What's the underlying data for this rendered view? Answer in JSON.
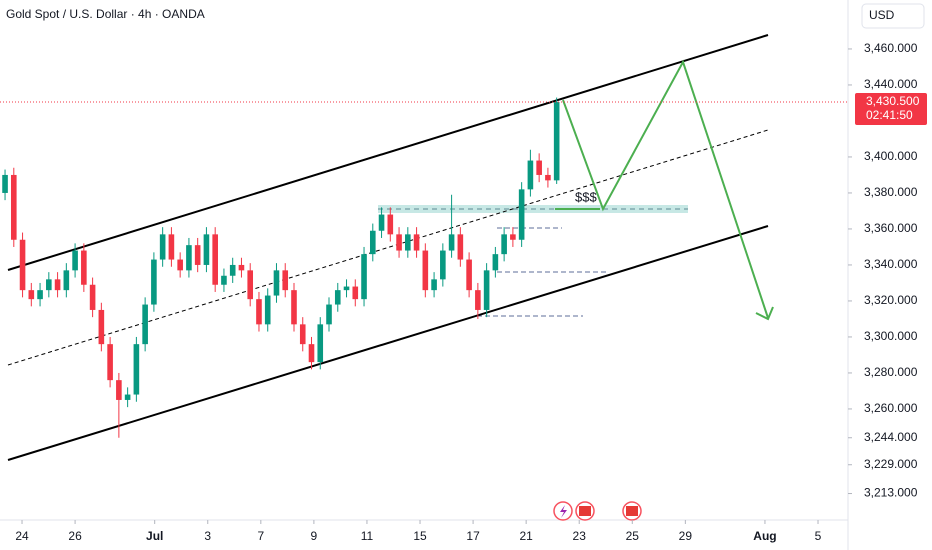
{
  "chart_data": {
    "type": "candlestick",
    "title": "Gold Spot / U.S. Dollar · 4h · OANDA",
    "currency": "USD",
    "price_label": "3,430.500",
    "countdown": "02:41:50",
    "annotation": "$$$",
    "up_color": "#089981",
    "down_color": "#f23645",
    "x": [
      -0.64,
      -0.31,
      0.02,
      0.35,
      0.68,
      1.01,
      1.34,
      1.67,
      2,
      2.33,
      2.66,
      2.99,
      3.32,
      3.65,
      3.98,
      4.31,
      4.64,
      4.97,
      5.3,
      5.63,
      5.96,
      6.29,
      6.62,
      6.95,
      7.28,
      7.61,
      7.94,
      8.27,
      8.6,
      8.93,
      9.26,
      9.59,
      9.92,
      10.25,
      10.58,
      10.91,
      11.24,
      11.57,
      11.9,
      12.23,
      12.56,
      12.89,
      13.22,
      13.55,
      13.88,
      14.21,
      14.54,
      14.87,
      15.2,
      15.53,
      15.86,
      16.19,
      16.52,
      16.85,
      17.18,
      17.51,
      17.84,
      18.17,
      18.5,
      18.83,
      19.16,
      19.49,
      19.82,
      20.15
    ],
    "open": [
      3380,
      3390,
      3354,
      3326,
      3321,
      3326,
      3332,
      3326,
      3337,
      3348,
      3329,
      3315,
      3296,
      3276,
      3265,
      3268,
      3296,
      3318,
      3343,
      3357,
      3343,
      3337,
      3351,
      3340,
      3357,
      3329,
      3334,
      3340,
      3337,
      3321,
      3307,
      3323,
      3337,
      3326,
      3307,
      3296,
      3286,
      3307,
      3318,
      3326,
      3328,
      3321,
      3346,
      3359,
      3368,
      3357,
      3348,
      3357,
      3348,
      3326,
      3332,
      3348,
      3357,
      3343,
      3326,
      3315,
      3337,
      3346,
      3357,
      3354,
      3382,
      3398,
      3390,
      3387
    ],
    "high": [
      3393,
      3394,
      3358,
      3330,
      3330,
      3336,
      3336,
      3341,
      3352,
      3352,
      3333,
      3319,
      3300,
      3280,
      3272,
      3300,
      3322,
      3347,
      3361,
      3361,
      3347,
      3355,
      3355,
      3361,
      3361,
      3338,
      3344,
      3344,
      3341,
      3325,
      3327,
      3341,
      3341,
      3330,
      3311,
      3300,
      3311,
      3322,
      3330,
      3332,
      3332,
      3350,
      3363,
      3372,
      3372,
      3361,
      3361,
      3361,
      3352,
      3336,
      3352,
      3379,
      3361,
      3347,
      3330,
      3341,
      3350,
      3361,
      3361,
      3386,
      3404,
      3402,
      3394,
      3433
    ],
    "low": [
      3376,
      3350,
      3322,
      3317,
      3317,
      3322,
      3322,
      3322,
      3333,
      3325,
      3311,
      3292,
      3272,
      3244,
      3261,
      3264,
      3292,
      3314,
      3339,
      3339,
      3333,
      3333,
      3336,
      3336,
      3325,
      3325,
      3330,
      3333,
      3317,
      3303,
      3303,
      3319,
      3322,
      3303,
      3292,
      3282,
      3282,
      3303,
      3314,
      3322,
      3317,
      3317,
      3342,
      3355,
      3353,
      3344,
      3344,
      3344,
      3322,
      3322,
      3328,
      3344,
      3339,
      3322,
      3310,
      3311,
      3333,
      3342,
      3350,
      3350,
      3378,
      3386,
      3383,
      3385
    ],
    "close": [
      3390,
      3354,
      3326,
      3321,
      3326,
      3332,
      3326,
      3337,
      3348,
      3329,
      3315,
      3296,
      3276,
      3265,
      3268,
      3296,
      3318,
      3343,
      3357,
      3343,
      3337,
      3351,
      3340,
      3357,
      3329,
      3334,
      3340,
      3337,
      3321,
      3307,
      3323,
      3337,
      3326,
      3307,
      3296,
      3286,
      3307,
      3318,
      3326,
      3328,
      3321,
      3346,
      3359,
      3368,
      3357,
      3348,
      3357,
      3348,
      3326,
      3332,
      3348,
      3357,
      3343,
      3326,
      3315,
      3337,
      3346,
      3357,
      3354,
      3382,
      3398,
      3390,
      3387,
      3430.5
    ],
    "xlim": [
      -0.83,
      31.13
    ],
    "xticks": [
      {
        "value": 0,
        "label": "24"
      },
      {
        "value": 2,
        "label": "26"
      },
      {
        "value": 5,
        "label": "Jul"
      },
      {
        "value": 7,
        "label": "3"
      },
      {
        "value": 9,
        "label": "7"
      },
      {
        "value": 11,
        "label": "9"
      },
      {
        "value": 13,
        "label": "11"
      },
      {
        "value": 15,
        "label": "15"
      },
      {
        "value": 17,
        "label": "17"
      },
      {
        "value": 19,
        "label": "21"
      },
      {
        "value": 21,
        "label": "23"
      },
      {
        "value": 23,
        "label": "25"
      },
      {
        "value": 25,
        "label": "29"
      },
      {
        "value": 28,
        "label": "Aug"
      },
      {
        "value": 30,
        "label": "5"
      }
    ],
    "ylim": [
      3198.3,
      3487.2
    ],
    "yticks": [
      {
        "value": 3460,
        "label": "3,460.000"
      },
      {
        "value": 3440,
        "label": "3,440.000"
      },
      {
        "value": 3400,
        "label": "3,400.000"
      },
      {
        "value": 3380,
        "label": "3,380.000"
      },
      {
        "value": 3360,
        "label": "3,360.000"
      },
      {
        "value": 3340,
        "label": "3,340.000"
      },
      {
        "value": 3320,
        "label": "3,320.000"
      },
      {
        "value": 3300,
        "label": "3,300.000"
      },
      {
        "value": 3280,
        "label": "3,280.000"
      },
      {
        "value": 3260,
        "label": "3,260.000"
      },
      {
        "value": 3244,
        "label": "3,244.000"
      },
      {
        "value": 3229,
        "label": "3,229.000"
      },
      {
        "value": 3213,
        "label": "3,213.000"
      }
    ]
  }
}
